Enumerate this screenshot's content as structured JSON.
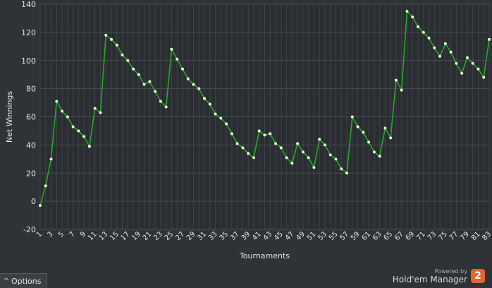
{
  "chart_data": {
    "type": "line",
    "xlabel": "Tournaments",
    "ylabel": "Net Winnings",
    "ylim": [
      -20,
      140
    ],
    "yticks": [
      -20,
      0,
      20,
      40,
      60,
      80,
      100,
      120,
      140
    ],
    "xlim": [
      1,
      83
    ],
    "xticks": [
      1,
      3,
      5,
      7,
      9,
      11,
      13,
      15,
      17,
      19,
      21,
      23,
      25,
      27,
      29,
      31,
      33,
      35,
      37,
      39,
      41,
      43,
      45,
      47,
      49,
      51,
      53,
      55,
      57,
      59,
      61,
      63,
      65,
      67,
      69,
      71,
      73,
      75,
      77,
      79,
      81,
      83
    ],
    "grid": true,
    "line_color": "#27a82a",
    "point_color": "#e8ffd0",
    "series": [
      {
        "values": [
          -3,
          11,
          30,
          71,
          64,
          60,
          53,
          50,
          46,
          39,
          66,
          63,
          118,
          115,
          111,
          104,
          100,
          94,
          90,
          83,
          85,
          78,
          71,
          67,
          108,
          101,
          94,
          87,
          83,
          80,
          73,
          69,
          62,
          59,
          55,
          48,
          41,
          38,
          34,
          31,
          50,
          47,
          48,
          41,
          38,
          31,
          27,
          41,
          35,
          31,
          24,
          44,
          40,
          33,
          30,
          23,
          20,
          60,
          53,
          49,
          42,
          35,
          32,
          52,
          45,
          86,
          79,
          135,
          131,
          124,
          120,
          116,
          109,
          103,
          112,
          106,
          98,
          91,
          102,
          98,
          94,
          88,
          115
        ]
      }
    ]
  },
  "ui": {
    "options_label": "Options",
    "options_icon": "chevron-up-icon",
    "powered_by": "Powered by",
    "product_name": "Hold'em Manager",
    "logo_text": "2",
    "accent": "#e0662a"
  }
}
